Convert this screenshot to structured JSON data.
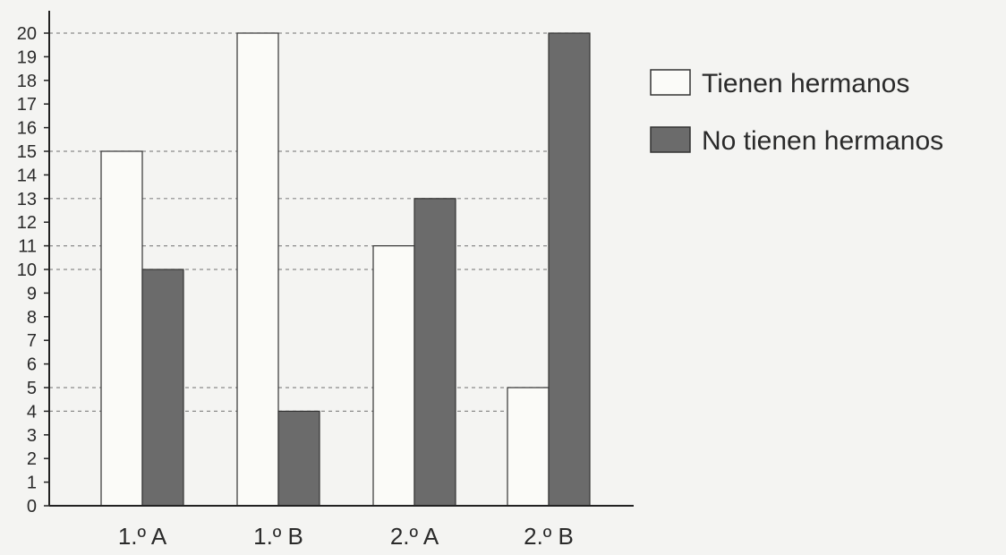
{
  "chart_data": {
    "type": "bar",
    "categories": [
      "1.º A",
      "1.º B",
      "2.º A",
      "2.º B"
    ],
    "series": [
      {
        "name": "Tienen hermanos",
        "values": [
          15,
          20,
          11,
          5
        ],
        "color": "#fbfbf8"
      },
      {
        "name": "No tienen hermanos",
        "values": [
          10,
          4,
          13,
          20
        ],
        "color": "#6b6b6b"
      }
    ],
    "y_ticks": [
      "0",
      "1",
      "2",
      "3",
      "4",
      "5",
      "6",
      "7",
      "8",
      "9",
      "10",
      "11",
      "12",
      "13",
      "14",
      "15",
      "16",
      "17",
      "18",
      "19",
      "20"
    ],
    "ylim": [
      0,
      20
    ],
    "grid": "dashed lines at bar tops",
    "legend_position": "top-right",
    "title": "",
    "xlabel": "",
    "ylabel": ""
  }
}
